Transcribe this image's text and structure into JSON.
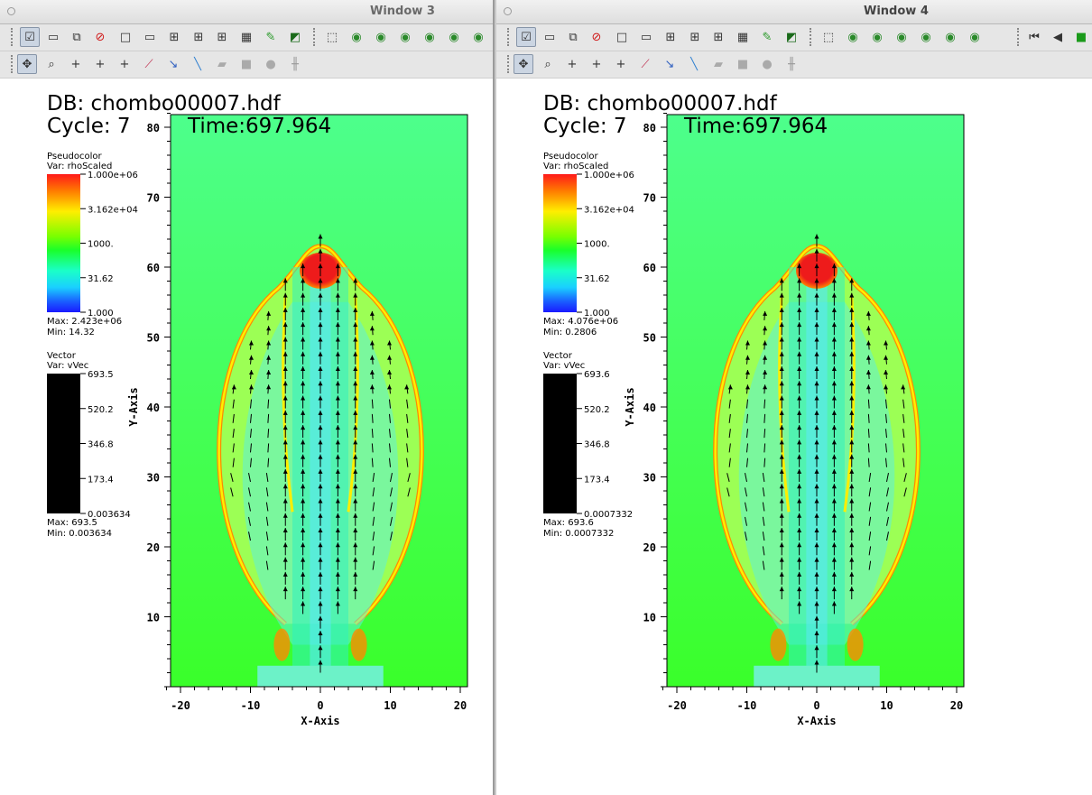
{
  "windows": [
    {
      "id": "w3",
      "title": "Window 3",
      "db": "DB: chombo00007.hdf",
      "cycle": "Cycle: 7",
      "time": "Time:697.964",
      "pseudocolor": {
        "title": "Pseudocolor",
        "var": "Var: rhoScaled",
        "ticks": [
          "1.000e+06",
          "3.162e+04",
          "1000.",
          "31.62",
          "1.000"
        ],
        "max": "Max:  2.423e+06",
        "min": "Min:   14.32"
      },
      "vector": {
        "title": "Vector",
        "var": "Var: vVec",
        "ticks": [
          "693.5",
          "520.2",
          "346.8",
          "173.4",
          "0.003634"
        ],
        "max": "Max:  693.5",
        "min": "Min:  0.003634"
      }
    },
    {
      "id": "w4",
      "title": "Window 4",
      "db": "DB: chombo00007.hdf",
      "cycle": "Cycle: 7",
      "time": "Time:697.964",
      "pseudocolor": {
        "title": "Pseudocolor",
        "var": "Var: rhoScaled",
        "ticks": [
          "1.000e+06",
          "3.162e+04",
          "1000.",
          "31.62",
          "1.000"
        ],
        "max": "Max:  4.076e+06",
        "min": "Min:   0.2806"
      },
      "vector": {
        "title": "Vector",
        "var": "Var: vVec",
        "ticks": [
          "693.6",
          "520.2",
          "346.8",
          "173.4",
          "0.0007332"
        ],
        "max": "Max:  693.6",
        "min": "Min:  0.0007332"
      }
    }
  ],
  "axes": {
    "xlabel": "X-Axis",
    "ylabel": "Y-Axis",
    "xticks": [
      "-20",
      "-10",
      "0",
      "10",
      "20"
    ],
    "yticks": [
      "10",
      "20",
      "30",
      "40",
      "50",
      "60",
      "70",
      "80"
    ]
  },
  "colors": {
    "background_field": "#4cff7a",
    "shell_yellow": "#ffee00",
    "shell_orange": "#ff8a00",
    "core_red": "#ee1b1b",
    "jet_cyan": "#5ff0d8",
    "arrow": "#000000"
  },
  "toolbar_icons": {
    "row1": [
      "active-window-icon",
      "new-window-icon",
      "clone-window-icon",
      "delete-window-icon",
      "layout-1x1-icon",
      "layout-1x2-icon",
      "layout-2x2-icon",
      "layout-2x3-icon",
      "layout-2x4-icon",
      "layout-3x3-icon",
      "lock-view-icon",
      "lock-time-icon",
      "perspective-icon",
      "camera-icon",
      "camera-icon",
      "camera-icon",
      "camera-icon",
      "camera-icon",
      "camera-icon"
    ],
    "row2": [
      "navigate-icon",
      "zoom-icon",
      "zone-pick-icon",
      "node-pick-icon",
      "spreadsheet-pick-icon",
      "lineout-icon",
      "point-tool-icon",
      "line-tool-icon",
      "plane-tool-icon",
      "box-tool-icon",
      "sphere-tool-icon",
      "axis-tool-icon"
    ],
    "animation": [
      "step-back-icon",
      "reverse-play-icon",
      "stop-icon"
    ]
  }
}
